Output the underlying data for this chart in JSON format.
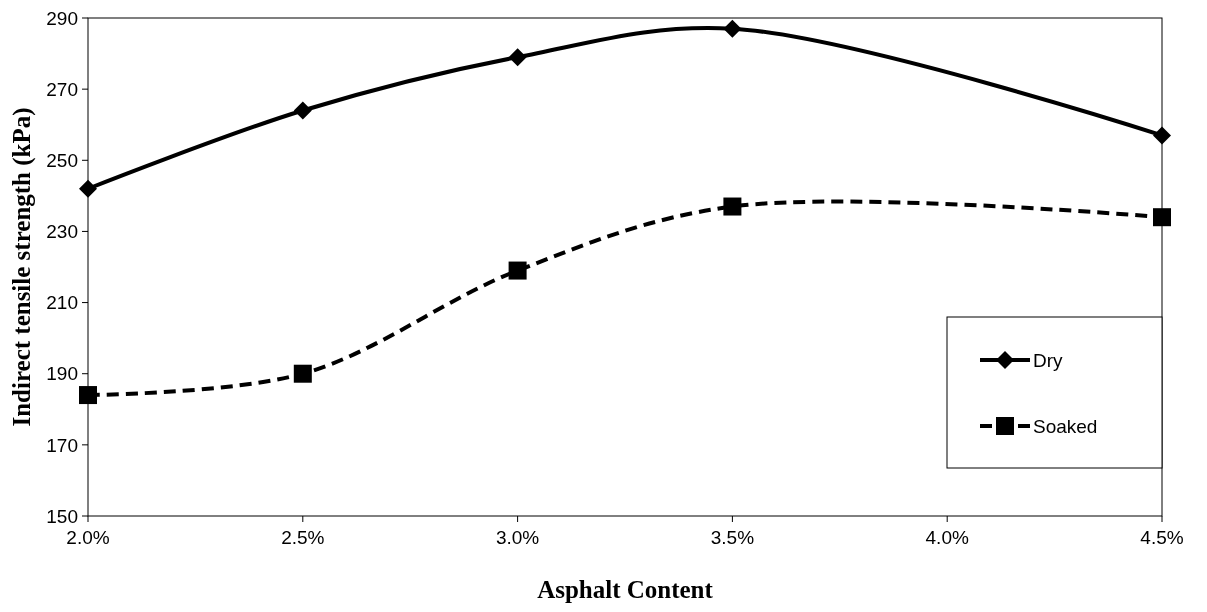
{
  "chart_data": {
    "type": "line",
    "xlabel": "Asphalt Content",
    "ylabel": "Indirect tensile strength (kPa)",
    "x": [
      2.0,
      2.5,
      3.0,
      3.5,
      4.5
    ],
    "xlim": [
      2.0,
      4.5
    ],
    "xticks": [
      {
        "value": 2.0,
        "label": "2.0%"
      },
      {
        "value": 2.5,
        "label": "2.5%"
      },
      {
        "value": 3.0,
        "label": "3.0%"
      },
      {
        "value": 3.5,
        "label": "3.5%"
      },
      {
        "value": 4.0,
        "label": "4.0%"
      },
      {
        "value": 4.5,
        "label": "4.5%"
      }
    ],
    "ylim": [
      150,
      290
    ],
    "yticks": [
      150,
      170,
      190,
      210,
      230,
      250,
      270,
      290
    ],
    "grid": false,
    "legend": "right",
    "series": [
      {
        "name": "Dry",
        "color": "#000000",
        "values": [
          242,
          264,
          279,
          287,
          257
        ],
        "marker": "diamond",
        "line_style": "solid"
      },
      {
        "name": "Soaked",
        "color": "#000000",
        "values": [
          184,
          190,
          219,
          237,
          234
        ],
        "marker": "square",
        "line_style": "dashed"
      }
    ]
  }
}
